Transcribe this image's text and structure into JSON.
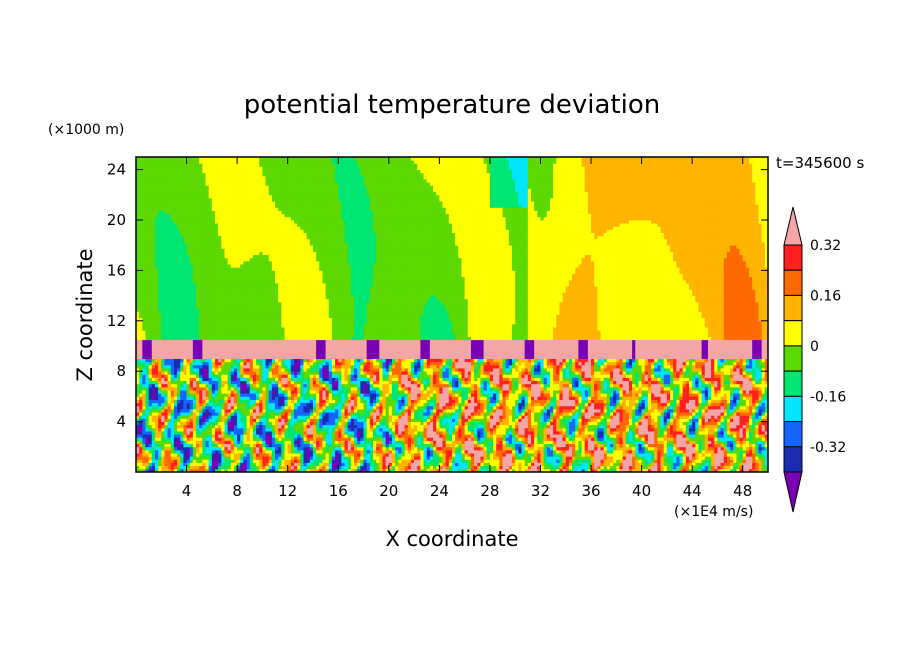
{
  "chart_data": {
    "type": "heatmap",
    "title": "potential temperature deviation",
    "xlabel": "X coordinate",
    "ylabel": "Z coordinate",
    "x_unit": "(×1E4 m/s)",
    "y_unit": "(×1000 m)",
    "time_label": "t=345600 s",
    "xlim": [
      0,
      50
    ],
    "ylim": [
      0,
      25
    ],
    "x_ticks": [
      "4",
      "8",
      "12",
      "16",
      "20",
      "24",
      "28",
      "32",
      "36",
      "40",
      "44",
      "48"
    ],
    "y_ticks": [
      "4",
      "8",
      "12",
      "16",
      "20",
      "24"
    ],
    "colorbar": {
      "levels": [
        -0.4,
        -0.32,
        -0.24,
        -0.16,
        -0.08,
        0,
        0.08,
        0.16,
        0.24,
        0.32,
        0.4
      ],
      "colors": [
        "#7a00b3",
        "#1a2db0",
        "#1466ff",
        "#00e6ff",
        "#00e673",
        "#5cd900",
        "#ffff00",
        "#ffb400",
        "#ff6a00",
        "#ff2020",
        "#f4a6a6"
      ],
      "labels": [
        "0.32",
        "0.16",
        "0",
        "-0.16",
        "-0.32"
      ]
    },
    "regions": {
      "upper_layer": "mostly 0 to -0.08, with positive streaks and a 0.16-0.24 band for x 31 to 50",
      "inversion_band": "above 0.40 at z 9.0 to 10.5 with below -0.40 plumes",
      "lower_layer": "mixed -0.40 to 0.40 convective cells from z 0 to 9"
    }
  }
}
